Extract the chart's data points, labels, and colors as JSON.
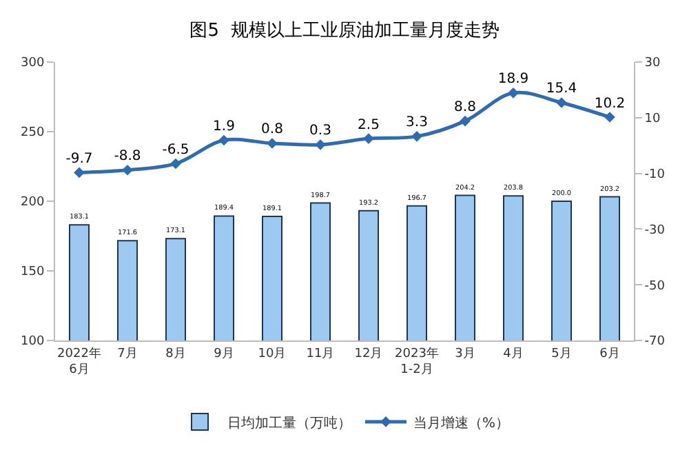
{
  "chart_data": {
    "type": "bar",
    "title": "图5  规模以上工业原油加工量月度走势",
    "categories": [
      "2022年\n6月",
      "7月",
      "8月",
      "9月",
      "10月",
      "11月",
      "12月",
      "2023年\n1-2月",
      "3月",
      "4月",
      "5月",
      "6月"
    ],
    "series": [
      {
        "name": "日均加工量（万吨）",
        "color": "#9dc8f0",
        "values": [
          183.1,
          171.6,
          173.1,
          189.4,
          189.1,
          198.7,
          193.2,
          196.7,
          204.2,
          203.8,
          200.0,
          203.2
        ],
        "value_labels": [
          "183.1",
          "171.6",
          "173.1",
          "189.4",
          "189.1",
          "198.7",
          "193.2",
          "196.7",
          "204.2",
          "203.8",
          "200.0",
          "203.2"
        ]
      },
      {
        "name": "当月增速（%）",
        "type": "line",
        "axis": "y2",
        "color": "#2e6bb0",
        "marker": "diamond",
        "values": [
          -9.7,
          -8.8,
          -6.5,
          1.9,
          0.8,
          0.3,
          2.5,
          3.3,
          8.8,
          18.9,
          15.4,
          10.2
        ]
      }
    ],
    "data_labels": true,
    "ylim": [
      100,
      300
    ],
    "yticks": [
      100,
      150,
      200,
      250,
      300
    ],
    "y2lim": [
      -70,
      30
    ],
    "y2ticks": [
      -70,
      -50,
      -30,
      -10,
      10,
      30
    ],
    "legend": "bottom"
  }
}
